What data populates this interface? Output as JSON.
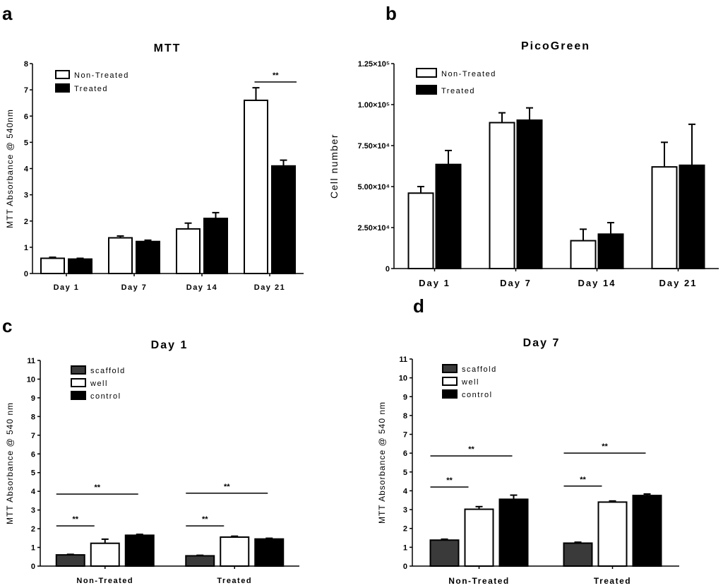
{
  "chart_data": [
    {
      "panel": "a",
      "type": "bar",
      "title": "MTT",
      "ylabel": "MTT Absorbance @ 540nm",
      "xlabel": "",
      "ylim": [
        0,
        8
      ],
      "yticks": [
        "0",
        "1",
        "2",
        "3",
        "4",
        "5",
        "6",
        "7",
        "8"
      ],
      "categories": [
        "Day 1",
        "Day 7",
        "Day 14",
        "Day 21"
      ],
      "legend_position": "top-left",
      "grid": false,
      "series": [
        {
          "name": "Non-Treated",
          "style": "white",
          "values": [
            0.58,
            1.36,
            1.7,
            6.6
          ],
          "errors": [
            0.04,
            0.07,
            0.22,
            0.48
          ]
        },
        {
          "name": "Treated",
          "style": "black",
          "values": [
            0.55,
            1.22,
            2.1,
            4.1
          ],
          "errors": [
            0.03,
            0.05,
            0.22,
            0.22
          ]
        }
      ],
      "annotations": [
        {
          "text": "**",
          "category": 3
        }
      ]
    },
    {
      "panel": "b",
      "type": "bar",
      "title": "PicoGreen",
      "ylabel": "Cell number",
      "xlabel": "",
      "ylim": [
        0,
        125000
      ],
      "yticks": [
        "0",
        "2.50×10⁴",
        "5.00×10⁴",
        "7.50×10⁴",
        "1.00×10⁵",
        "1.25×10⁵"
      ],
      "categories": [
        "Day 1",
        "Day 7",
        "Day 14",
        "Day 21"
      ],
      "legend_position": "top-left",
      "grid": false,
      "series": [
        {
          "name": "Non-Treated",
          "style": "white",
          "values": [
            46000,
            89000,
            17000,
            62000
          ],
          "errors": [
            4000,
            6000,
            7000,
            15000
          ]
        },
        {
          "name": "Treated",
          "style": "black",
          "values": [
            63500,
            90500,
            21000,
            63000
          ],
          "errors": [
            8500,
            7500,
            7000,
            25000
          ]
        }
      ],
      "annotations": []
    },
    {
      "panel": "c",
      "type": "bar",
      "title": "Day 1",
      "ylabel": "MTT Absorbance @ 540 nm",
      "xlabel": "",
      "ylim": [
        0,
        11
      ],
      "yticks": [
        "0",
        "1",
        "2",
        "3",
        "4",
        "5",
        "6",
        "7",
        "8",
        "9",
        "10",
        "11"
      ],
      "categories": [
        "Non-Treated",
        "Treated"
      ],
      "legend_position": "top-left",
      "grid": false,
      "series": [
        {
          "name": "scaffold",
          "style": "dark",
          "values": [
            0.6,
            0.55
          ],
          "errors": [
            0.03,
            0.03
          ]
        },
        {
          "name": "well",
          "style": "white",
          "values": [
            1.22,
            1.55
          ],
          "errors": [
            0.22,
            0.05
          ]
        },
        {
          "name": "control",
          "style": "black",
          "values": [
            1.65,
            1.45
          ],
          "errors": [
            0.05,
            0.04
          ]
        }
      ],
      "annotations": [
        {
          "text": "**",
          "category": 0,
          "from": 0,
          "to": 1,
          "y": 2.15
        },
        {
          "text": "**",
          "category": 0,
          "from": 0,
          "to": 2,
          "y": 3.85
        },
        {
          "text": "**",
          "category": 1,
          "from": 0,
          "to": 1,
          "y": 2.15
        },
        {
          "text": "**",
          "category": 1,
          "from": 0,
          "to": 2,
          "y": 3.9
        }
      ]
    },
    {
      "panel": "d",
      "type": "bar",
      "title": "Day 7",
      "ylabel": "MTT Absorbance @ 540 nm",
      "xlabel": "",
      "ylim": [
        0,
        11
      ],
      "yticks": [
        "0",
        "1",
        "2",
        "3",
        "4",
        "5",
        "6",
        "7",
        "8",
        "9",
        "10",
        "11"
      ],
      "categories": [
        "Non-Treated",
        "Treated"
      ],
      "legend_position": "top-left",
      "grid": false,
      "series": [
        {
          "name": "scaffold",
          "style": "dark",
          "values": [
            1.38,
            1.22
          ],
          "errors": [
            0.05,
            0.05
          ]
        },
        {
          "name": "well",
          "style": "white",
          "values": [
            3.02,
            3.4
          ],
          "errors": [
            0.14,
            0.06
          ]
        },
        {
          "name": "control",
          "style": "black",
          "values": [
            3.55,
            3.75
          ],
          "errors": [
            0.22,
            0.08
          ]
        }
      ],
      "annotations": [
        {
          "text": "**",
          "category": 0,
          "from": 0,
          "to": 1,
          "y": 4.2
        },
        {
          "text": "**",
          "category": 0,
          "from": 0,
          "to": 2,
          "y": 5.85
        },
        {
          "text": "**",
          "category": 1,
          "from": 0,
          "to": 1,
          "y": 4.25
        },
        {
          "text": "**",
          "category": 1,
          "from": 0,
          "to": 2,
          "y": 6.0
        }
      ]
    }
  ],
  "styles": {
    "white": "#ffffff",
    "black": "#000000",
    "dark": "#3a3a3a",
    "stroke": "#000000"
  }
}
